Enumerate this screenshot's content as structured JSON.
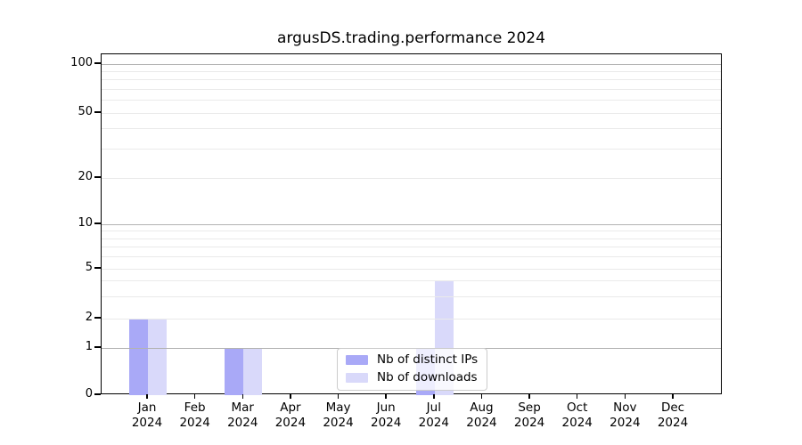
{
  "figure": {
    "background": "#ffffff"
  },
  "chart_data": {
    "type": "bar",
    "title": "argusDS.trading.performance 2024",
    "categories": [
      {
        "month": "Jan",
        "year": "2024"
      },
      {
        "month": "Feb",
        "year": "2024"
      },
      {
        "month": "Mar",
        "year": "2024"
      },
      {
        "month": "Apr",
        "year": "2024"
      },
      {
        "month": "May",
        "year": "2024"
      },
      {
        "month": "Jun",
        "year": "2024"
      },
      {
        "month": "Jul",
        "year": "2024"
      },
      {
        "month": "Aug",
        "year": "2024"
      },
      {
        "month": "Sep",
        "year": "2024"
      },
      {
        "month": "Oct",
        "year": "2024"
      },
      {
        "month": "Nov",
        "year": "2024"
      },
      {
        "month": "Dec",
        "year": "2024"
      }
    ],
    "series": [
      {
        "name": "Nb of distinct IPs",
        "color": "#a9a9f7",
        "values": [
          2,
          0,
          1,
          0,
          0,
          0,
          1,
          0,
          0,
          0,
          0,
          0
        ]
      },
      {
        "name": "Nb of downloads",
        "color": "#d9d9fa",
        "values": [
          2,
          0,
          1,
          0,
          0,
          0,
          4,
          0,
          0,
          0,
          0,
          0
        ]
      }
    ],
    "yticks": [
      0,
      1,
      2,
      5,
      10,
      20,
      50,
      100
    ],
    "yscale": "symlog",
    "ylim": [
      0,
      113
    ],
    "xlabel": "",
    "ylabel": "",
    "grid": true,
    "legend_position": "lower center"
  },
  "colors": {
    "grid_major": "#b3b3b3",
    "grid_minor": "#eaeaea",
    "spine": "#000000",
    "text": "#000000",
    "legend_border": "#cccccc"
  }
}
